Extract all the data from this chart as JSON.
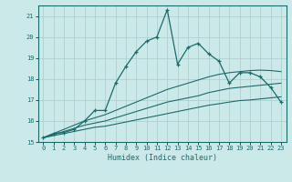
{
  "xlabel": "Humidex (Indice chaleur)",
  "ylabel": "",
  "xlim": [
    -0.5,
    23.5
  ],
  "ylim": [
    15,
    21.5
  ],
  "yticks": [
    15,
    16,
    17,
    18,
    19,
    20,
    21
  ],
  "xticks": [
    0,
    1,
    2,
    3,
    4,
    5,
    6,
    7,
    8,
    9,
    10,
    11,
    12,
    13,
    14,
    15,
    16,
    17,
    18,
    19,
    20,
    21,
    22,
    23
  ],
  "bg_color": "#cce9e9",
  "grid_color": "#b0d0d0",
  "line_color": "#1a6b6b",
  "line1_x": [
    0,
    1,
    2,
    3,
    4,
    5,
    6,
    7,
    8,
    9,
    10,
    11,
    12,
    13,
    14,
    15,
    16,
    17,
    18,
    19,
    20,
    21,
    22,
    23
  ],
  "line1_y": [
    15.2,
    15.4,
    15.45,
    15.6,
    16.0,
    16.5,
    16.5,
    17.8,
    18.6,
    19.3,
    19.8,
    20.0,
    21.3,
    18.7,
    19.5,
    19.7,
    19.2,
    18.85,
    17.8,
    18.3,
    18.3,
    18.1,
    17.6,
    16.9
  ],
  "line2_x": [
    0,
    1,
    2,
    3,
    4,
    5,
    6,
    7,
    8,
    9,
    10,
    11,
    12,
    13,
    14,
    15,
    16,
    17,
    18,
    19,
    20,
    21,
    22,
    23
  ],
  "line2_y": [
    15.2,
    15.3,
    15.4,
    15.5,
    15.6,
    15.7,
    15.75,
    15.85,
    15.95,
    16.05,
    16.15,
    16.25,
    16.35,
    16.45,
    16.55,
    16.65,
    16.75,
    16.82,
    16.9,
    16.97,
    17.0,
    17.05,
    17.1,
    17.15
  ],
  "line3_x": [
    0,
    1,
    2,
    3,
    4,
    5,
    6,
    7,
    8,
    9,
    10,
    11,
    12,
    13,
    14,
    15,
    16,
    17,
    18,
    19,
    20,
    21,
    22,
    23
  ],
  "line3_y": [
    15.2,
    15.35,
    15.5,
    15.65,
    15.8,
    15.9,
    16.0,
    16.15,
    16.3,
    16.45,
    16.6,
    16.75,
    16.9,
    17.0,
    17.1,
    17.2,
    17.35,
    17.45,
    17.55,
    17.6,
    17.65,
    17.7,
    17.75,
    17.8
  ],
  "line4_x": [
    0,
    1,
    2,
    3,
    4,
    5,
    6,
    7,
    8,
    9,
    10,
    11,
    12,
    13,
    14,
    15,
    16,
    17,
    18,
    19,
    20,
    21,
    22,
    23
  ],
  "line4_y": [
    15.2,
    15.4,
    15.6,
    15.8,
    16.0,
    16.15,
    16.3,
    16.5,
    16.7,
    16.9,
    17.1,
    17.3,
    17.5,
    17.65,
    17.8,
    17.95,
    18.1,
    18.22,
    18.3,
    18.35,
    18.4,
    18.42,
    18.4,
    18.35
  ]
}
